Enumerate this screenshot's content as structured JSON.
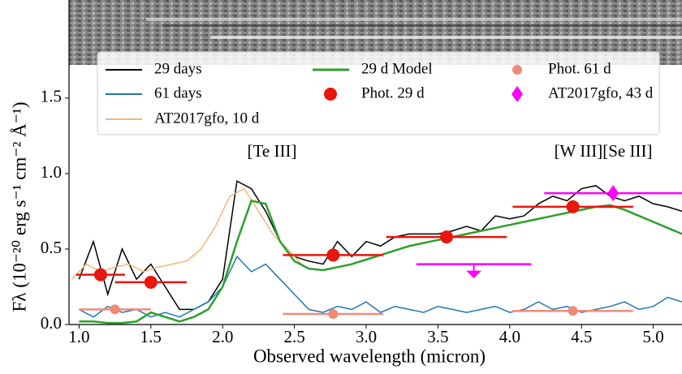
{
  "chart_data": {
    "type": "line",
    "xlabel": "Observed wavelength (micron)",
    "ylabel": "Fλ (10⁻²⁰ erg s⁻¹ cm⁻² Å⁻¹)",
    "annotations": [
      "[Te III]",
      "[W III][Se III]"
    ],
    "xlim": [
      0.93,
      5.2
    ],
    "ylim": [
      0,
      2.15
    ],
    "xticks": [
      {
        "value": 1,
        "label": "1.0"
      },
      {
        "value": 1.5,
        "label": "1.5"
      },
      {
        "value": 2,
        "label": "2.0"
      },
      {
        "value": 2.5,
        "label": "2.5"
      },
      {
        "value": 3,
        "label": "3.0"
      },
      {
        "value": 3.5,
        "label": "3.5"
      },
      {
        "value": 4,
        "label": "4.0"
      },
      {
        "value": 4.5,
        "label": "4.5"
      },
      {
        "value": 5,
        "label": "5.0"
      }
    ],
    "yticks": [
      {
        "value": 0,
        "label": "0.0"
      },
      {
        "value": 0.5,
        "label": "0.5"
      },
      {
        "value": 1,
        "label": "1.0"
      },
      {
        "value": 1.5,
        "label": "1.5"
      }
    ],
    "series": [
      {
        "name": "29 days",
        "color": "#000000",
        "kind": "line",
        "x": [
          1.0,
          1.1,
          1.2,
          1.3,
          1.4,
          1.5,
          1.6,
          1.7,
          1.8,
          1.9,
          2.0,
          2.1,
          2.2,
          2.3,
          2.4,
          2.5,
          2.6,
          2.7,
          2.8,
          2.9,
          3.0,
          3.1,
          3.2,
          3.3,
          3.4,
          3.5,
          3.6,
          3.7,
          3.8,
          3.9,
          4.0,
          4.1,
          4.2,
          4.3,
          4.4,
          4.5,
          4.6,
          4.7,
          4.8,
          4.9,
          5.0,
          5.1,
          5.2
        ],
        "values": [
          0.3,
          0.55,
          0.2,
          0.5,
          0.3,
          0.4,
          0.25,
          0.1,
          0.1,
          0.15,
          0.3,
          0.95,
          0.9,
          0.75,
          0.55,
          0.45,
          0.42,
          0.4,
          0.55,
          0.45,
          0.55,
          0.52,
          0.58,
          0.6,
          0.6,
          0.6,
          0.62,
          0.65,
          0.62,
          0.72,
          0.7,
          0.72,
          0.8,
          0.85,
          0.82,
          0.9,
          0.92,
          0.85,
          0.82,
          0.85,
          0.8,
          0.78,
          0.75
        ]
      },
      {
        "name": "61 days",
        "color": "#1f77b4",
        "kind": "line",
        "x": [
          1.0,
          1.1,
          1.2,
          1.3,
          1.4,
          1.5,
          1.6,
          1.7,
          1.8,
          1.9,
          2.0,
          2.1,
          2.2,
          2.3,
          2.4,
          2.5,
          2.6,
          2.7,
          2.8,
          2.9,
          3.0,
          3.1,
          3.2,
          3.3,
          3.4,
          3.5,
          3.6,
          3.7,
          3.8,
          3.9,
          4.0,
          4.1,
          4.2,
          4.3,
          4.4,
          4.5,
          4.6,
          4.7,
          4.8,
          4.9,
          5.0,
          5.1,
          5.2
        ],
        "values": [
          0.1,
          0.05,
          0.12,
          0.08,
          0.1,
          0.05,
          0.08,
          0.05,
          0.1,
          0.15,
          0.25,
          0.45,
          0.35,
          0.4,
          0.3,
          0.2,
          0.1,
          0.08,
          0.12,
          0.1,
          0.15,
          0.08,
          0.12,
          0.1,
          0.08,
          0.12,
          0.1,
          0.08,
          0.1,
          0.12,
          0.08,
          0.1,
          0.15,
          0.1,
          0.12,
          0.08,
          0.1,
          0.12,
          0.15,
          0.1,
          0.12,
          0.18,
          0.15
        ]
      },
      {
        "name": "AT2017gfo, 10 d",
        "color": "#f5b57a",
        "kind": "line",
        "x": [
          0.95,
          1.05,
          1.15,
          1.25,
          1.35,
          1.45,
          1.55,
          1.65,
          1.75,
          1.85,
          1.95,
          2.05,
          2.15,
          2.25,
          2.35,
          2.45,
          2.55
        ],
        "values": [
          0.3,
          0.4,
          0.35,
          0.38,
          0.4,
          0.35,
          0.38,
          0.4,
          0.42,
          0.5,
          0.65,
          0.85,
          0.9,
          0.75,
          0.6,
          0.5,
          0.4
        ]
      },
      {
        "name": "29 d Model",
        "color": "#2ca02c",
        "kind": "line",
        "x": [
          1.0,
          1.1,
          1.2,
          1.3,
          1.4,
          1.5,
          1.6,
          1.7,
          1.8,
          1.9,
          2.0,
          2.1,
          2.2,
          2.3,
          2.4,
          2.5,
          2.6,
          2.7,
          2.8,
          2.9,
          3.0,
          3.1,
          3.2,
          3.3,
          3.4,
          3.5,
          3.6,
          3.7,
          3.8,
          3.9,
          4.0,
          4.1,
          4.2,
          4.3,
          4.4,
          4.5,
          4.6,
          4.7,
          4.8,
          4.9,
          5.0,
          5.1,
          5.2
        ],
        "values": [
          0.02,
          0.02,
          0.01,
          0.01,
          0.02,
          0.08,
          0.05,
          0.02,
          0.05,
          0.1,
          0.25,
          0.55,
          0.82,
          0.8,
          0.55,
          0.42,
          0.37,
          0.36,
          0.38,
          0.4,
          0.43,
          0.46,
          0.49,
          0.52,
          0.54,
          0.56,
          0.58,
          0.6,
          0.62,
          0.64,
          0.66,
          0.68,
          0.7,
          0.72,
          0.74,
          0.76,
          0.78,
          0.79,
          0.76,
          0.72,
          0.68,
          0.64,
          0.6
        ]
      },
      {
        "name": "Phot. 29 d",
        "color": "#e8160c",
        "kind": "points",
        "marker": "circle",
        "x": [
          1.15,
          1.5,
          2.77,
          3.56,
          4.44
        ],
        "xerr": [
          0.17,
          0.25,
          0.35,
          0.42,
          0.42
        ],
        "values": [
          0.33,
          0.28,
          0.46,
          0.58,
          0.78
        ]
      },
      {
        "name": "Phot. 61 d",
        "color": "#f08a78",
        "kind": "points",
        "marker": "circle-small",
        "x": [
          1.25,
          2.77,
          4.44
        ],
        "xerr": [
          0.25,
          0.35,
          0.42
        ],
        "values": [
          0.1,
          0.07,
          0.09
        ]
      },
      {
        "name": "AT2017gfo, 43 d",
        "color": "#ff00ff",
        "kind": "points",
        "marker": "diamond",
        "x": [
          3.75,
          4.72
        ],
        "xerr": [
          0.4,
          0.48
        ],
        "upper_limit": [
          true,
          false
        ],
        "values": [
          0.4,
          0.87
        ]
      }
    ]
  }
}
